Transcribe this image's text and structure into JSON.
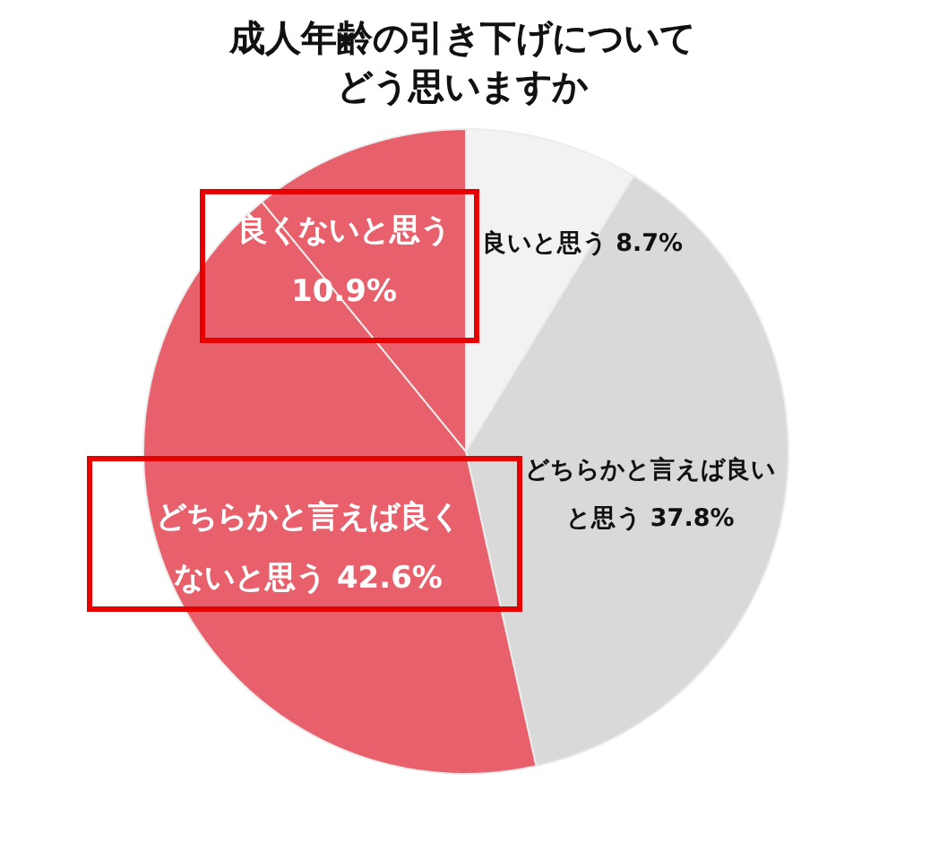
{
  "chart_data": {
    "type": "pie",
    "title": "成人年齢の引き下げについてどう思いますか",
    "categories": [
      "良いと思う",
      "どちらかと言えば良いと思う",
      "どちらかと言えば良くないと思う",
      "良くないと思う"
    ],
    "values": [
      8.7,
      37.8,
      42.6,
      10.9
    ],
    "colors": [
      "#f2f2f2",
      "#d9d9d9",
      "#e8606b",
      "#e8606b"
    ],
    "value_labels": [
      "8.7%",
      "37.8%",
      "42.6%",
      "10.9%"
    ]
  }
}
